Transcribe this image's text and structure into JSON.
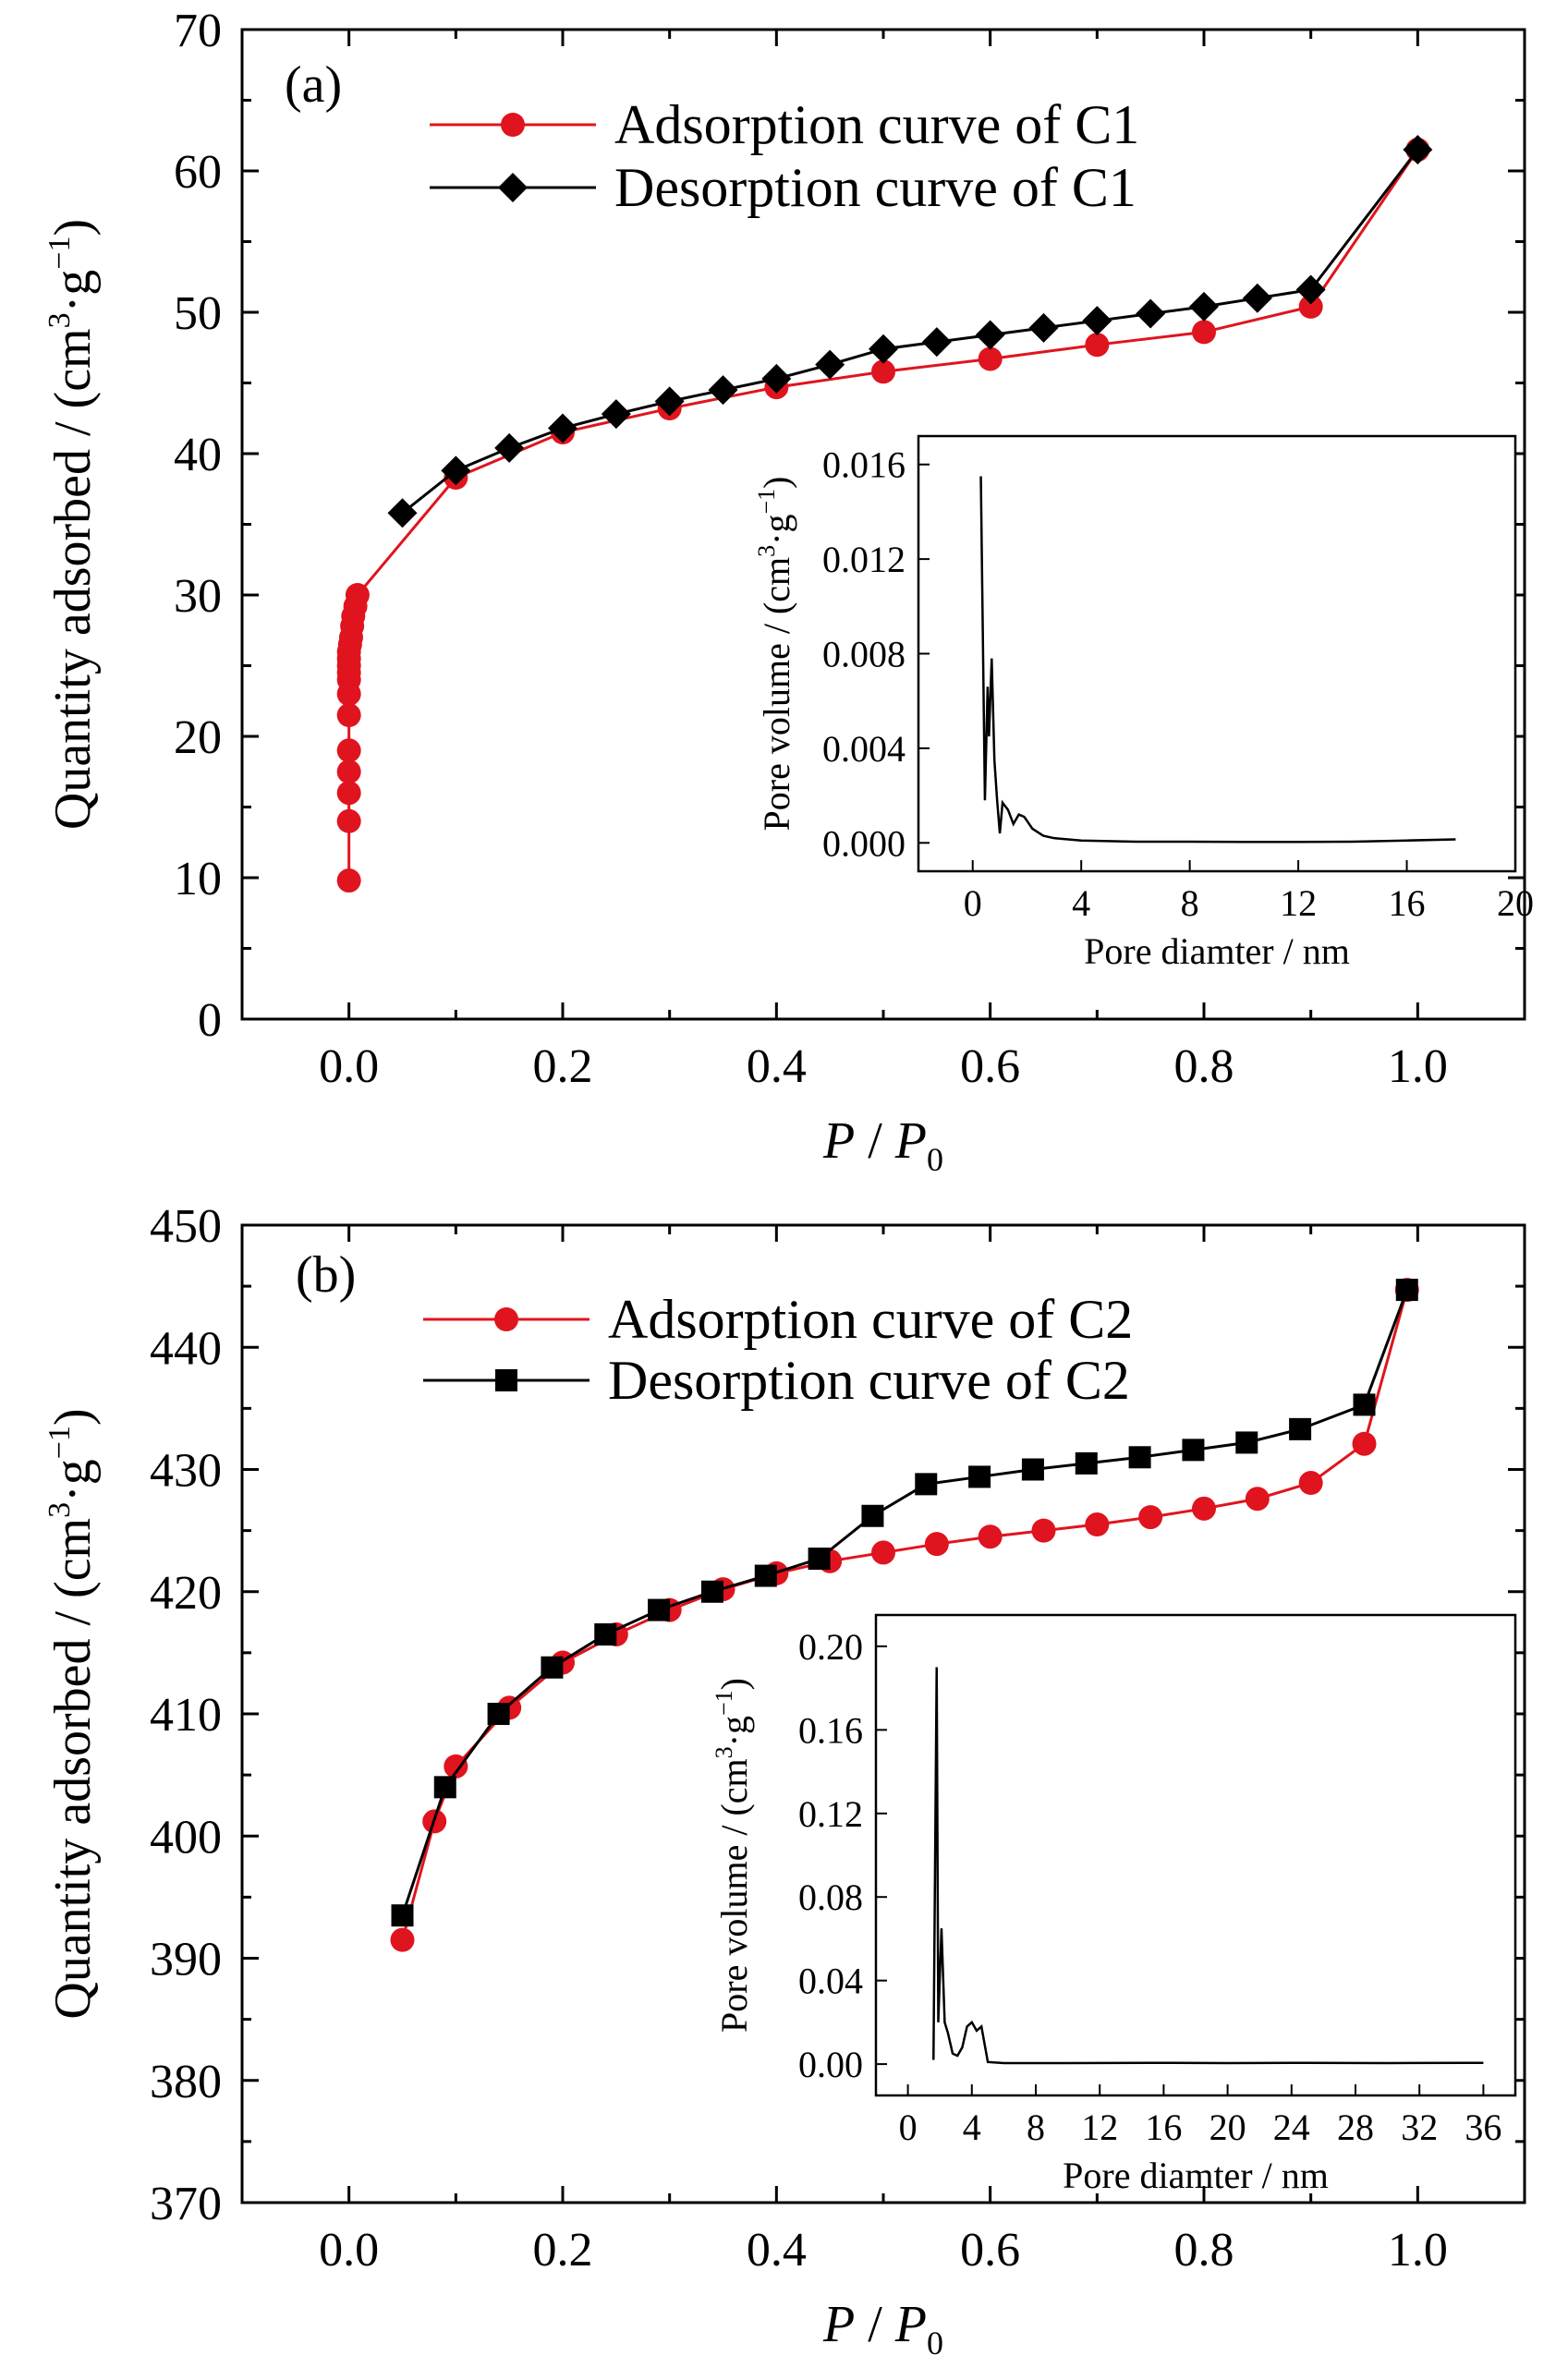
{
  "chart_data": [
    {
      "type": "line",
      "panel_label": "(a)",
      "xlabel": {
        "italic_a": "P",
        "sep": " / ",
        "italic_b": "P",
        "sub": "0"
      },
      "ylabel": {
        "main": "Quantity adsorbed / (cm",
        "sup": "3",
        "mid": "·g",
        "sup2": "−1",
        "end": ")"
      },
      "xlim": [
        -0.1,
        1.1
      ],
      "ylim": [
        0,
        70
      ],
      "xticks": [
        "0.0",
        "0.2",
        "0.4",
        "0.6",
        "0.8",
        "1.0"
      ],
      "yticks": [
        "0",
        "10",
        "20",
        "30",
        "40",
        "50",
        "60",
        "70"
      ],
      "grid": false,
      "legend_placement": "top-center",
      "series": [
        {
          "name": "Adsorption curve of C1",
          "color": "#e0141e",
          "marker": "circle",
          "x": [
            0.0,
            0.0,
            0.0,
            0.0,
            0.0,
            0.0,
            0.0,
            0.0,
            0.0,
            0.0,
            0.0,
            0.0,
            0.001,
            0.002,
            0.003,
            0.004,
            0.006,
            0.008,
            0.1,
            0.2,
            0.3,
            0.4,
            0.5,
            0.6,
            0.7,
            0.8,
            0.9,
            1.0
          ],
          "y": [
            9.8,
            14.0,
            16.0,
            17.5,
            19.0,
            21.5,
            23.0,
            24.0,
            24.5,
            25.0,
            25.5,
            26.0,
            26.5,
            27.0,
            27.8,
            28.5,
            29.2,
            30.0,
            38.3,
            41.5,
            43.2,
            44.7,
            45.8,
            46.7,
            47.7,
            48.6,
            50.4,
            61.5
          ]
        },
        {
          "name": "Desorption curve of C1",
          "color": "#000000",
          "marker": "diamond",
          "x": [
            1.0,
            0.9,
            0.85,
            0.8,
            0.75,
            0.7,
            0.65,
            0.6,
            0.55,
            0.5,
            0.45,
            0.4,
            0.35,
            0.3,
            0.25,
            0.2,
            0.15,
            0.1,
            0.05
          ],
          "y": [
            61.5,
            51.6,
            51.0,
            50.4,
            49.9,
            49.4,
            48.9,
            48.4,
            47.9,
            47.4,
            46.3,
            45.3,
            44.5,
            43.7,
            42.8,
            41.8,
            40.4,
            38.8,
            35.8
          ]
        }
      ],
      "inset": {
        "xlabel": "Pore diamter / nm",
        "ylabel": {
          "main": "Pore volume / (cm",
          "sup": "3",
          "mid": "·g",
          "sup2": "−1",
          "end": ")"
        },
        "xlim": [
          -2,
          20
        ],
        "ylim": [
          -0.0012,
          0.0172
        ],
        "xticks": [
          "0",
          "4",
          "8",
          "12",
          "16",
          "20"
        ],
        "yticks": [
          "0.000",
          "0.004",
          "0.008",
          "0.012",
          "0.016"
        ],
        "x": [
          0.3,
          0.45,
          0.55,
          0.6,
          0.7,
          0.8,
          0.9,
          1.0,
          1.1,
          1.3,
          1.5,
          1.7,
          1.9,
          2.2,
          2.6,
          3.0,
          4.0,
          6.0,
          8.0,
          10.0,
          12.0,
          14.0,
          16.0,
          17.8
        ],
        "y": [
          0.0155,
          0.0018,
          0.0066,
          0.0045,
          0.0078,
          0.0035,
          0.0018,
          0.0004,
          0.0017,
          0.0014,
          0.0008,
          0.0012,
          0.0011,
          0.0006,
          0.0003,
          0.0002,
          0.0001,
          5e-05,
          5e-05,
          4e-05,
          4e-05,
          5e-05,
          0.0001,
          0.00015
        ]
      }
    },
    {
      "type": "line",
      "panel_label": "(b)",
      "xlabel": {
        "italic_a": "P",
        "sep": " / ",
        "italic_b": "P",
        "sub": "0"
      },
      "ylabel": {
        "main": "Quantity adsorbed / (cm",
        "sup": "3",
        "mid": "·g",
        "sup2": "−1",
        "end": ")"
      },
      "xlim": [
        -0.1,
        1.1
      ],
      "ylim": [
        370,
        450
      ],
      "xticks": [
        "0.0",
        "0.2",
        "0.4",
        "0.6",
        "0.8",
        "1.0"
      ],
      "yticks": [
        "370",
        "380",
        "390",
        "400",
        "410",
        "420",
        "430",
        "440",
        "450"
      ],
      "grid": false,
      "legend_placement": "top-center",
      "series": [
        {
          "name": "Adsorption curve of C2",
          "color": "#e0141e",
          "marker": "circle",
          "x": [
            0.05,
            0.08,
            0.1,
            0.15,
            0.2,
            0.25,
            0.3,
            0.35,
            0.4,
            0.45,
            0.5,
            0.55,
            0.6,
            0.65,
            0.7,
            0.75,
            0.8,
            0.85,
            0.9,
            0.95,
            0.99
          ],
          "y": [
            391.5,
            401.2,
            405.7,
            410.5,
            414.2,
            416.5,
            418.5,
            420.2,
            421.5,
            422.5,
            423.2,
            423.9,
            424.5,
            425.0,
            425.5,
            426.1,
            426.8,
            427.6,
            428.9,
            432.1,
            444.7
          ]
        },
        {
          "name": "Desorption curve of C2",
          "color": "#000000",
          "marker": "square",
          "x": [
            0.99,
            0.95,
            0.89,
            0.84,
            0.79,
            0.74,
            0.69,
            0.64,
            0.59,
            0.54,
            0.49,
            0.44,
            0.39,
            0.34,
            0.29,
            0.24,
            0.19,
            0.14,
            0.09,
            0.05
          ],
          "y": [
            444.7,
            435.3,
            433.3,
            432.2,
            431.6,
            431.0,
            430.5,
            430.0,
            429.4,
            428.8,
            426.2,
            422.7,
            421.3,
            420.0,
            418.5,
            416.5,
            413.8,
            410.0,
            404.0,
            393.5
          ]
        }
      ],
      "inset": {
        "xlabel": "Pore diamter / nm",
        "ylabel": {
          "main": "Pore volume / (cm",
          "sup": "3",
          "mid": "·g",
          "sup2": "−1",
          "end": ")"
        },
        "xlim": [
          -2,
          38
        ],
        "ylim": [
          -0.015,
          0.215
        ],
        "xticks": [
          "0",
          "4",
          "8",
          "12",
          "16",
          "20",
          "24",
          "28",
          "32",
          "36"
        ],
        "yticks": [
          "0.00",
          "0.04",
          "0.08",
          "0.12",
          "0.16",
          "0.20"
        ],
        "x": [
          1.6,
          1.8,
          1.9,
          2.1,
          2.3,
          2.5,
          2.8,
          3.1,
          3.4,
          3.7,
          4.0,
          4.3,
          4.6,
          5.0,
          6.0,
          10.0,
          15.0,
          20.0,
          25.0,
          30.0,
          35.0,
          36.0
        ],
        "y": [
          0.002,
          0.19,
          0.02,
          0.065,
          0.02,
          0.015,
          0.005,
          0.004,
          0.008,
          0.018,
          0.02,
          0.016,
          0.018,
          0.001,
          0.0005,
          0.0005,
          0.0006,
          0.0005,
          0.0006,
          0.0005,
          0.0006,
          0.0006
        ]
      }
    }
  ]
}
